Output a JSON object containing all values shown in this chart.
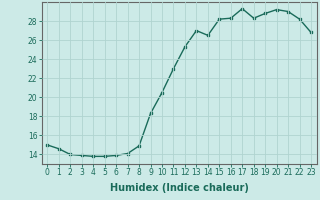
{
  "x": [
    0,
    1,
    2,
    3,
    4,
    5,
    6,
    7,
    8,
    9,
    10,
    11,
    12,
    13,
    14,
    15,
    16,
    17,
    18,
    19,
    20,
    21,
    22,
    23
  ],
  "y": [
    15.0,
    14.6,
    14.0,
    13.9,
    13.8,
    13.8,
    13.9,
    14.1,
    14.9,
    18.3,
    20.5,
    23.0,
    25.3,
    27.0,
    26.5,
    28.2,
    28.3,
    29.3,
    28.3,
    28.8,
    29.2,
    29.0,
    28.2,
    26.8
  ],
  "line_color": "#1a6b5a",
  "marker": "s",
  "marker_size": 2.0,
  "bg_color": "#cceae7",
  "grid_color": "#b0d4d0",
  "axis_color": "#666666",
  "xlabel": "Humidex (Indice chaleur)",
  "xlim": [
    -0.5,
    23.5
  ],
  "ylim": [
    13.0,
    30.0
  ],
  "yticks": [
    14,
    16,
    18,
    20,
    22,
    24,
    26,
    28
  ],
  "xticks": [
    0,
    1,
    2,
    3,
    4,
    5,
    6,
    7,
    8,
    9,
    10,
    11,
    12,
    13,
    14,
    15,
    16,
    17,
    18,
    19,
    20,
    21,
    22,
    23
  ],
  "xlabel_fontsize": 7.0,
  "tick_fontsize": 5.5,
  "line_width": 1.0
}
